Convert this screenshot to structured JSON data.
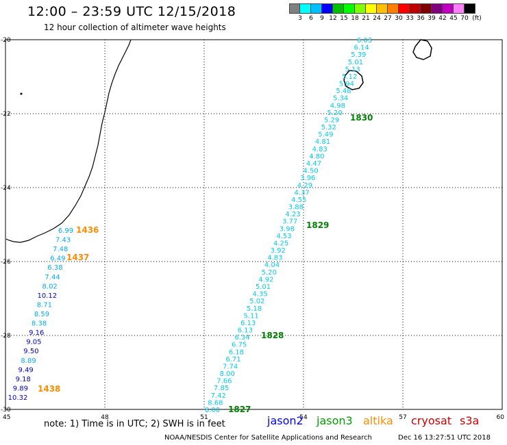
{
  "header": {
    "title": "12:00 – 23:59 UTC 12/15/2018",
    "subtitle": "12 hour collection of altimeter wave heights"
  },
  "legend": {
    "colors": [
      "#808080",
      "#00ffff",
      "#00c0ff",
      "#0000ff",
      "#00c000",
      "#00ff00",
      "#80ff00",
      "#ffff00",
      "#ffc000",
      "#ff8000",
      "#ff0000",
      "#c00000",
      "#800000",
      "#800080",
      "#c000c0",
      "#ff80ff",
      "#000000"
    ],
    "ticks": [
      "3",
      "6",
      "9",
      "12",
      "15",
      "18",
      "21",
      "24",
      "27",
      "30",
      "33",
      "36",
      "39",
      "42",
      "45",
      "70",
      "(ft)"
    ]
  },
  "axes": {
    "x_ticks": [
      "45",
      "48",
      "51",
      "54",
      "57",
      "60"
    ],
    "y_ticks": [
      "-20",
      "-22",
      "-24",
      "-26",
      "-28",
      "-30"
    ]
  },
  "passes": {
    "west": {
      "points": [
        {
          "v": "6.99",
          "c": "#00aaff"
        },
        {
          "v": "7.43",
          "c": "#00aaff"
        },
        {
          "v": "7.48",
          "c": "#00aaff"
        },
        {
          "v": "6.49",
          "c": "#00aaff"
        },
        {
          "v": "6.38",
          "c": "#00aaff"
        },
        {
          "v": "7.44",
          "c": "#00aaff"
        },
        {
          "v": "8.02",
          "c": "#00aaff"
        },
        {
          "v": "10.12",
          "c": "#0000cc"
        },
        {
          "v": "8.71",
          "c": "#00aaff"
        },
        {
          "v": "8.59",
          "c": "#00aaff"
        },
        {
          "v": "8.38",
          "c": "#00aaff"
        },
        {
          "v": "9.16",
          "c": "#0000cc"
        },
        {
          "v": "9.05",
          "c": "#0000cc"
        },
        {
          "v": "9.50",
          "c": "#0000cc"
        },
        {
          "v": "8.89",
          "c": "#00aaff"
        },
        {
          "v": "9.49",
          "c": "#0000cc"
        },
        {
          "v": "9.18",
          "c": "#0000cc"
        },
        {
          "v": "9.89",
          "c": "#0000cc"
        },
        {
          "v": "10.32",
          "c": "#0000cc"
        }
      ],
      "times": [
        "1436",
        "1437",
        "1438"
      ],
      "time_color": "#ff8c00"
    },
    "east": {
      "points": [
        "6.03",
        "6.14",
        "5.39",
        "5.01",
        "5.13",
        "5.12",
        "5.94",
        "5.48",
        "5.34",
        "4.98",
        "5.20",
        "5.29",
        "5.32",
        "5.49",
        "4.81",
        "4.83",
        "4.80",
        "4.47",
        "4.50",
        "3.96",
        "4.29",
        "4.37",
        "4.55",
        "3.88",
        "4.23",
        "3.77",
        "3.98",
        "4.53",
        "4.25",
        "3.92",
        "4.83",
        "4.04",
        "5.20",
        "4.92",
        "5.01",
        "4.35",
        "5.02",
        "5.18",
        "5.11",
        "6.13",
        "6.13",
        "6.34",
        "6.75",
        "6.18",
        "6.71",
        "7.74",
        "8.00",
        "7.66",
        "7.85",
        "7.42",
        "8.68",
        "8.00"
      ],
      "color": "#00ccee",
      "times": [
        "1830",
        "1829",
        "1828",
        "1827"
      ],
      "time_color": "#008000"
    }
  },
  "footer": {
    "note": "note:  1) Time is in UTC;  2) SWH is in feet",
    "satellites": [
      {
        "name": "jason2",
        "color": "#0000ff"
      },
      {
        "name": "jason3",
        "color": "#00a000"
      },
      {
        "name": "altika",
        "color": "#ff8c00"
      },
      {
        "name": "cryosat",
        "color": "#cc0000"
      },
      {
        "name": "s3a",
        "color": "#cc0000"
      }
    ],
    "credit": "NOAA/NESDIS Center for Satellite Applications and Research",
    "timestamp": "Dec 16 13:27:51 UTC 2018"
  }
}
